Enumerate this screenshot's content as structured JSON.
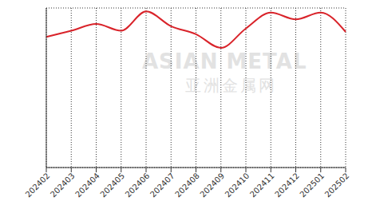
{
  "chart_data": {
    "type": "line",
    "categories": [
      "202402",
      "202403",
      "202404",
      "202405",
      "202406",
      "202407",
      "202408",
      "202409",
      "202410",
      "202411",
      "202412",
      "202501",
      "202502"
    ],
    "values": [
      5.73,
      6.0,
      6.3,
      6.0,
      6.85,
      6.2,
      5.85,
      5.25,
      6.1,
      6.8,
      6.5,
      6.8,
      5.95
    ],
    "color": "#d9232a",
    "ylim": [
      0,
      7
    ],
    "yticks": [
      0,
      1,
      2,
      3,
      4,
      5,
      6,
      7
    ],
    "grid": true,
    "tick_labels": "x",
    "annotations": [
      "ASIAN METAL",
      "亚洲金属网"
    ]
  }
}
